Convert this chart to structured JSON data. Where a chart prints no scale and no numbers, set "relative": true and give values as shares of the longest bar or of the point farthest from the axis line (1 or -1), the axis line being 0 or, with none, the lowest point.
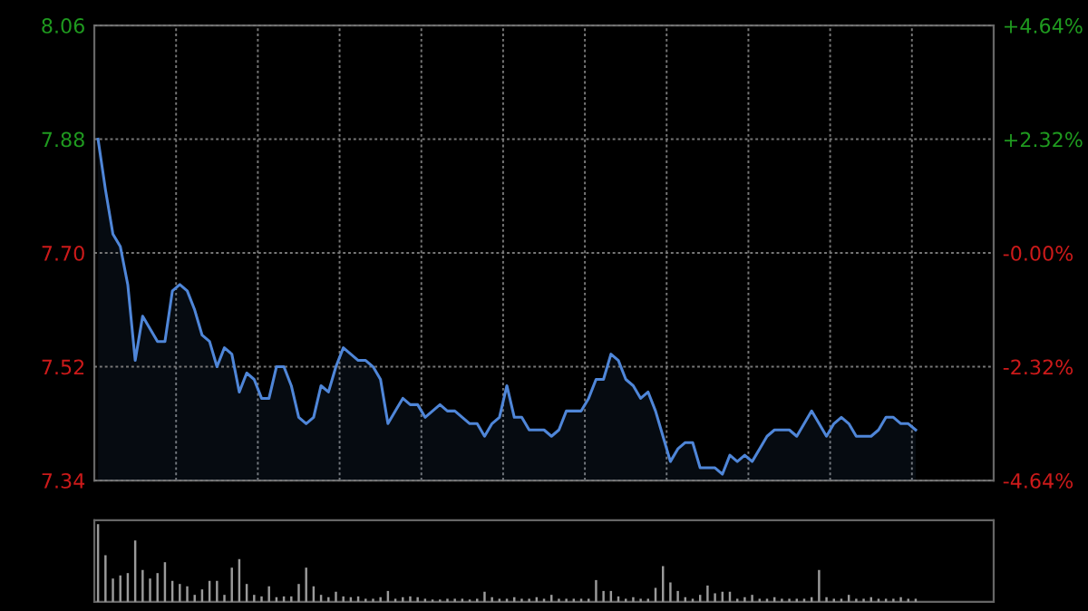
{
  "chart_data": [
    {
      "type": "area",
      "categories": [
        null,
        null,
        null,
        null,
        null,
        null,
        null,
        null,
        null,
        null,
        null,
        null,
        null,
        null,
        null,
        null,
        null,
        null,
        null,
        null,
        null,
        null,
        null,
        null,
        null,
        null,
        null,
        null,
        null,
        null,
        null,
        null,
        null,
        null,
        null,
        null,
        null,
        null,
        null,
        null,
        null,
        null,
        null,
        null,
        null,
        null,
        null,
        null,
        null,
        null,
        null,
        null,
        null,
        null,
        null,
        null,
        null,
        null,
        null,
        null,
        null,
        null,
        null,
        null,
        null,
        null,
        null,
        null,
        null,
        null,
        null,
        null,
        null,
        null,
        null,
        null,
        null,
        null,
        null,
        null,
        null,
        null,
        null,
        null,
        null,
        null,
        null,
        null,
        null,
        null,
        null,
        null,
        null,
        null,
        null,
        null,
        null,
        null,
        null,
        null,
        null,
        null,
        null,
        null,
        null,
        null,
        null,
        null,
        null,
        null,
        null
      ],
      "ylim": [
        7.34,
        8.06
      ],
      "yticks": [
        {
          "value": 7.34,
          "label": "7.34"
        },
        {
          "value": 7.52,
          "label": "7.52"
        },
        {
          "value": 7.7,
          "label": "7.70"
        },
        {
          "value": 7.88,
          "label": "7.88"
        },
        {
          "value": 8.06,
          "label": "8.06"
        }
      ],
      "y2lim": [
        -4.64,
        4.64
      ],
      "y2ticks": [
        {
          "value": -4.64,
          "label": "-4.64%"
        },
        {
          "value": -2.32,
          "label": "-2.32%"
        },
        {
          "value": 0,
          "label": "-0.00%"
        },
        {
          "value": 2.32,
          "label": "+2.32%"
        },
        {
          "value": 4.64,
          "label": "+4.64%"
        }
      ],
      "grid": true,
      "tick_labels": "y",
      "series": [
        {
          "color": "#4f86d8",
          "values": [
            7.88,
            7.8,
            7.73,
            7.71,
            7.65,
            7.53,
            7.6,
            7.58,
            7.56,
            7.56,
            7.64,
            7.65,
            7.64,
            7.61,
            7.57,
            7.56,
            7.52,
            7.55,
            7.54,
            7.48,
            7.51,
            7.5,
            7.47,
            7.47,
            7.52,
            7.52,
            7.49,
            7.44,
            7.43,
            7.44,
            7.49,
            7.48,
            7.52,
            7.55,
            7.54,
            7.53,
            7.53,
            7.52,
            7.5,
            7.43,
            7.45,
            7.47,
            7.46,
            7.46,
            7.44,
            7.45,
            7.46,
            7.45,
            7.45,
            7.44,
            7.43,
            7.43,
            7.41,
            7.43,
            7.44,
            7.49,
            7.44,
            7.44,
            7.42,
            7.42,
            7.42,
            7.41,
            7.42,
            7.45,
            7.45,
            7.45,
            7.47,
            7.5,
            7.5,
            7.54,
            7.53,
            7.5,
            7.49,
            7.47,
            7.48,
            7.45,
            7.41,
            7.37,
            7.39,
            7.4,
            7.4,
            7.36,
            7.36,
            7.36,
            7.35,
            7.38,
            7.37,
            7.38,
            7.37,
            7.39,
            7.41,
            7.42,
            7.42,
            7.42,
            7.41,
            7.43,
            7.45,
            7.43,
            7.41,
            7.43,
            7.44,
            7.43,
            7.41,
            7.41,
            7.41,
            7.42,
            7.44,
            7.44,
            7.43,
            7.43,
            7.42
          ]
        }
      ]
    },
    {
      "type": "bar",
      "relative": true,
      "tick_labels": false,
      "categories": [
        null,
        null,
        null,
        null,
        null,
        null,
        null,
        null,
        null,
        null,
        null,
        null,
        null,
        null,
        null,
        null,
        null,
        null,
        null,
        null,
        null,
        null,
        null,
        null,
        null,
        null,
        null,
        null,
        null,
        null,
        null,
        null,
        null,
        null,
        null,
        null,
        null,
        null,
        null,
        null,
        null,
        null,
        null,
        null,
        null,
        null,
        null,
        null,
        null,
        null,
        null,
        null,
        null,
        null,
        null,
        null,
        null,
        null,
        null,
        null,
        null,
        null,
        null,
        null,
        null,
        null,
        null,
        null,
        null,
        null,
        null,
        null,
        null,
        null,
        null,
        null,
        null,
        null,
        null,
        null,
        null,
        null,
        null,
        null,
        null,
        null,
        null,
        null,
        null,
        null,
        null,
        null,
        null,
        null,
        null,
        null,
        null,
        null,
        null,
        null,
        null,
        null,
        null,
        null,
        null,
        null,
        null,
        null,
        null,
        null,
        null
      ],
      "series": [
        {
          "color": "#9a9a9a",
          "values": [
            1.0,
            0.6,
            0.3,
            0.34,
            0.37,
            0.79,
            0.41,
            0.3,
            0.37,
            0.51,
            0.27,
            0.23,
            0.2,
            0.09,
            0.16,
            0.27,
            0.27,
            0.09,
            0.44,
            0.55,
            0.23,
            0.09,
            0.07,
            0.2,
            0.06,
            0.07,
            0.07,
            0.23,
            0.44,
            0.2,
            0.09,
            0.06,
            0.13,
            0.07,
            0.06,
            0.07,
            0.04,
            0.04,
            0.06,
            0.14,
            0.04,
            0.06,
            0.07,
            0.06,
            0.04,
            0.03,
            0.03,
            0.04,
            0.04,
            0.04,
            0.03,
            0.04,
            0.13,
            0.06,
            0.04,
            0.04,
            0.06,
            0.04,
            0.04,
            0.06,
            0.04,
            0.09,
            0.04,
            0.04,
            0.04,
            0.04,
            0.04,
            0.28,
            0.14,
            0.14,
            0.07,
            0.04,
            0.06,
            0.04,
            0.04,
            0.18,
            0.46,
            0.25,
            0.14,
            0.06,
            0.04,
            0.09,
            0.21,
            0.11,
            0.13,
            0.13,
            0.04,
            0.06,
            0.09,
            0.04,
            0.04,
            0.06,
            0.04,
            0.04,
            0.04,
            0.04,
            0.06,
            0.41,
            0.06,
            0.04,
            0.04,
            0.09,
            0.04,
            0.04,
            0.06,
            0.04,
            0.04,
            0.04,
            0.06,
            0.04,
            0.04
          ]
        }
      ]
    }
  ]
}
